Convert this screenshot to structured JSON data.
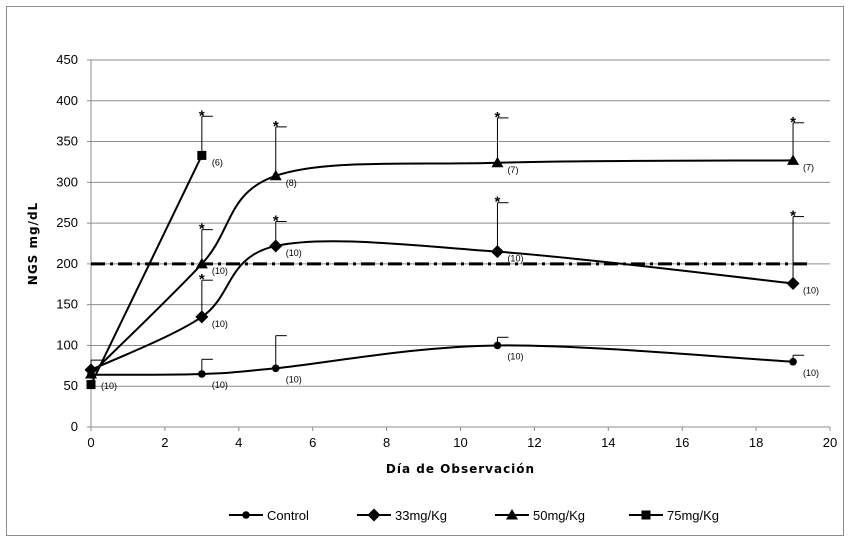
{
  "chart_data": {
    "type": "line",
    "title": "",
    "xlabel": "Día de Observación",
    "ylabel": "NGS mg/dL",
    "xlim": [
      0,
      20
    ],
    "ylim": [
      0,
      450
    ],
    "xticks": [
      0,
      2,
      4,
      6,
      8,
      10,
      12,
      14,
      16,
      18,
      20
    ],
    "yticks": [
      0,
      50,
      100,
      150,
      200,
      250,
      300,
      350,
      400,
      450
    ],
    "grid": "horizontal",
    "legend": "bottom",
    "reference_line": {
      "y": 200,
      "style": "dash-dot"
    },
    "series": [
      {
        "name": "Control",
        "marker": "circle",
        "x": [
          0,
          3,
          5,
          11,
          19
        ],
        "y": [
          64,
          65,
          72,
          100,
          80
        ],
        "error": [
          18,
          18,
          40,
          10,
          8
        ],
        "labels": [
          "(10)",
          "(10)",
          "(10)",
          "(10)",
          "(10)"
        ],
        "stars": [
          false,
          false,
          false,
          false,
          false
        ]
      },
      {
        "name": "33mg/Kg",
        "marker": "diamond",
        "x": [
          0,
          3,
          5,
          11,
          19
        ],
        "y": [
          70,
          135,
          222,
          215,
          176
        ],
        "error": [
          0,
          45,
          30,
          60,
          82
        ],
        "labels": [
          "",
          "(10)",
          "(10)",
          "(10)",
          "(10)"
        ],
        "stars": [
          false,
          true,
          true,
          true,
          true
        ]
      },
      {
        "name": "50mg/Kg",
        "marker": "triangle",
        "x": [
          0,
          3,
          5,
          11,
          19
        ],
        "y": [
          65,
          200,
          308,
          324,
          327
        ],
        "error": [
          0,
          42,
          60,
          55,
          46
        ],
        "labels": [
          "",
          "(10)",
          "(8)",
          "(7)",
          "(7)"
        ],
        "stars": [
          false,
          true,
          true,
          true,
          true
        ]
      },
      {
        "name": "75mg/Kg",
        "marker": "square",
        "x": [
          0,
          3
        ],
        "y": [
          52,
          333
        ],
        "error": [
          0,
          48
        ],
        "labels": [
          "",
          "(6)"
        ],
        "stars": [
          false,
          true
        ]
      }
    ]
  }
}
